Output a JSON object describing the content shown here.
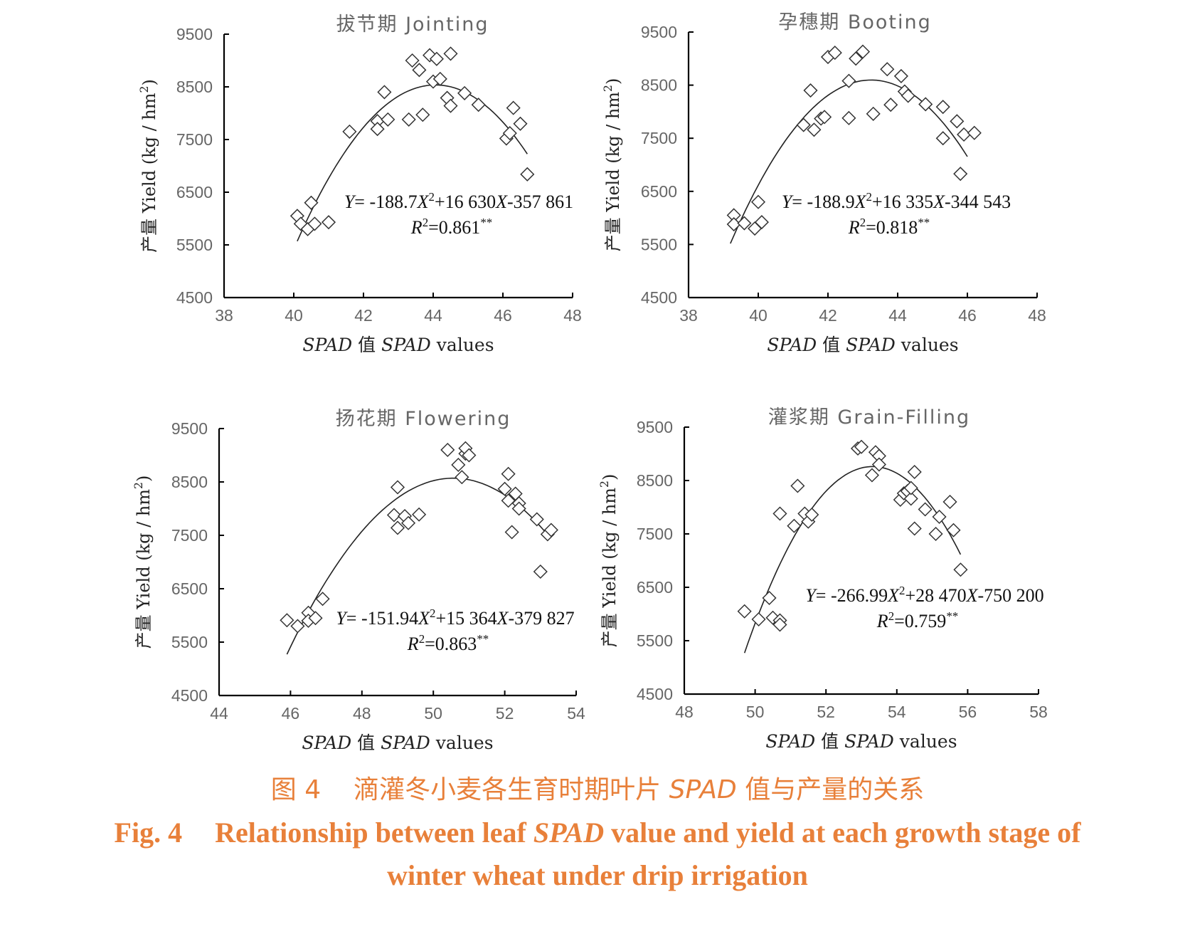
{
  "chart_data": [
    {
      "type": "scatter",
      "title": "拔节期 Jointing",
      "xlabel": "SPAD 值 SPAD values",
      "ylabel": "产量 Yield (kg / hm²)",
      "xlim": [
        38,
        48
      ],
      "ylim": [
        4500,
        9500
      ],
      "xticks": [
        "38",
        "40",
        "42",
        "44",
        "46",
        "48"
      ],
      "yticks": [
        "4500",
        "5500",
        "6500",
        "7500",
        "8500",
        "9500"
      ],
      "equation": "Y= -188.7X²+16 630X-357 861",
      "r2": "R²=0.861**",
      "fit": {
        "a": -188.7,
        "b": 16630,
        "c": -357861,
        "xrange": [
          40.1,
          46.7
        ]
      },
      "points": [
        [
          40.1,
          6050
        ],
        [
          40.2,
          5900
        ],
        [
          40.4,
          5800
        ],
        [
          40.5,
          6300
        ],
        [
          40.6,
          5900
        ],
        [
          41.0,
          5930
        ],
        [
          41.6,
          7650
        ],
        [
          42.4,
          7850
        ],
        [
          42.4,
          7700
        ],
        [
          42.6,
          8400
        ],
        [
          42.7,
          7880
        ],
        [
          43.3,
          7880
        ],
        [
          43.4,
          9000
        ],
        [
          43.6,
          8820
        ],
        [
          43.7,
          7970
        ],
        [
          43.9,
          9100
        ],
        [
          44.0,
          8600
        ],
        [
          44.1,
          9030
        ],
        [
          44.2,
          8650
        ],
        [
          44.4,
          8290
        ],
        [
          44.5,
          9130
        ],
        [
          44.5,
          8140
        ],
        [
          44.9,
          8380
        ],
        [
          45.3,
          8160
        ],
        [
          46.1,
          7520
        ],
        [
          46.2,
          7620
        ],
        [
          46.3,
          8100
        ],
        [
          46.5,
          7800
        ],
        [
          46.7,
          6840
        ]
      ]
    },
    {
      "type": "scatter",
      "title": "孕穗期 Booting",
      "xlabel": "SPAD 值 SPAD values",
      "ylabel": "产量 Yield (kg / hm²)",
      "xlim": [
        38,
        48
      ],
      "ylim": [
        4500,
        9500
      ],
      "xticks": [
        "38",
        "40",
        "42",
        "44",
        "46",
        "48"
      ],
      "yticks": [
        "4500",
        "5500",
        "6500",
        "7500",
        "8500",
        "9500"
      ],
      "equation": "Y= -188.9X²+16 335X-344 543",
      "r2": "R²=0.818**",
      "fit": {
        "a": -188.9,
        "b": 16335,
        "c": -344543,
        "xrange": [
          39.2,
          46.0
        ]
      },
      "points": [
        [
          39.3,
          6050
        ],
        [
          39.3,
          5880
        ],
        [
          39.6,
          5900
        ],
        [
          39.9,
          5800
        ],
        [
          40.0,
          6300
        ],
        [
          40.1,
          5920
        ],
        [
          41.3,
          7750
        ],
        [
          41.5,
          8400
        ],
        [
          41.6,
          7660
        ],
        [
          41.8,
          7870
        ],
        [
          41.9,
          7900
        ],
        [
          42.0,
          9030
        ],
        [
          42.2,
          9110
        ],
        [
          42.6,
          8580
        ],
        [
          42.6,
          7880
        ],
        [
          42.8,
          9000
        ],
        [
          43.0,
          9130
        ],
        [
          43.3,
          7960
        ],
        [
          43.7,
          8800
        ],
        [
          43.8,
          8130
        ],
        [
          44.1,
          8670
        ],
        [
          44.2,
          8380
        ],
        [
          44.3,
          8300
        ],
        [
          44.8,
          8140
        ],
        [
          45.3,
          8090
        ],
        [
          45.3,
          7500
        ],
        [
          45.7,
          7820
        ],
        [
          45.8,
          6830
        ],
        [
          45.9,
          7570
        ],
        [
          46.2,
          7600
        ]
      ]
    },
    {
      "type": "scatter",
      "title": "扬花期 Flowering",
      "xlabel": "SPAD 值 SPAD values",
      "ylabel": "产量 Yield (kg / hm²)",
      "xlim": [
        44,
        54
      ],
      "ylim": [
        4500,
        9500
      ],
      "xticks": [
        "44",
        "46",
        "48",
        "50",
        "52",
        "54"
      ],
      "yticks": [
        "4500",
        "5500",
        "6500",
        "7500",
        "8500",
        "9500"
      ],
      "equation": "Y= -151.94X²+15 364X-379 827",
      "r2": "R²=0.863**",
      "fit": {
        "a": -151.94,
        "b": 15364,
        "c": -379827,
        "xrange": [
          45.9,
          53.2
        ]
      },
      "points": [
        [
          45.9,
          5910
        ],
        [
          46.2,
          5800
        ],
        [
          46.5,
          6050
        ],
        [
          46.5,
          5900
        ],
        [
          46.7,
          5950
        ],
        [
          46.9,
          6310
        ],
        [
          48.9,
          7880
        ],
        [
          49.0,
          7640
        ],
        [
          49.0,
          8400
        ],
        [
          49.2,
          7860
        ],
        [
          49.3,
          7730
        ],
        [
          49.6,
          7890
        ],
        [
          50.4,
          9100
        ],
        [
          50.7,
          8820
        ],
        [
          50.8,
          8590
        ],
        [
          50.9,
          9030
        ],
        [
          50.9,
          9130
        ],
        [
          51.0,
          9000
        ],
        [
          52.0,
          8370
        ],
        [
          52.1,
          8150
        ],
        [
          52.1,
          8650
        ],
        [
          52.2,
          7560
        ],
        [
          52.3,
          8280
        ],
        [
          52.4,
          8100
        ],
        [
          52.4,
          8000
        ],
        [
          52.9,
          7800
        ],
        [
          53.0,
          6820
        ],
        [
          53.2,
          7520
        ],
        [
          53.3,
          7600
        ]
      ]
    },
    {
      "type": "scatter",
      "title": "灌浆期 Grain-Filling",
      "xlabel": "SPAD 值 SPAD values",
      "ylabel": "产量 Yield (kg / hm²)",
      "xlim": [
        48,
        58
      ],
      "ylim": [
        4500,
        9500
      ],
      "xticks": [
        "48",
        "50",
        "52",
        "54",
        "56",
        "58"
      ],
      "yticks": [
        "4500",
        "5500",
        "6500",
        "7500",
        "8500",
        "9500"
      ],
      "equation": "Y= -266.99X²+28 470X-750 200",
      "r2": "R²=0.759**",
      "fit": {
        "a": -266.99,
        "b": 28470,
        "c": -750200,
        "xrange": [
          49.7,
          55.8
        ]
      },
      "points": [
        [
          49.7,
          6050
        ],
        [
          50.1,
          5900
        ],
        [
          50.4,
          6300
        ],
        [
          50.5,
          5930
        ],
        [
          50.7,
          5880
        ],
        [
          50.7,
          5800
        ],
        [
          50.7,
          7880
        ],
        [
          51.1,
          7650
        ],
        [
          51.2,
          8400
        ],
        [
          51.4,
          7880
        ],
        [
          51.5,
          7730
        ],
        [
          51.6,
          7860
        ],
        [
          52.9,
          9100
        ],
        [
          53.0,
          9130
        ],
        [
          53.3,
          8600
        ],
        [
          53.4,
          9030
        ],
        [
          53.5,
          8960
        ],
        [
          53.5,
          8800
        ],
        [
          54.1,
          8140
        ],
        [
          54.2,
          8260
        ],
        [
          54.3,
          8300
        ],
        [
          54.4,
          8160
        ],
        [
          54.4,
          8360
        ],
        [
          54.5,
          7600
        ],
        [
          54.5,
          8660
        ],
        [
          54.8,
          7960
        ],
        [
          55.1,
          7500
        ],
        [
          55.2,
          7820
        ],
        [
          55.5,
          8100
        ],
        [
          55.6,
          7570
        ],
        [
          55.8,
          6830
        ]
      ]
    }
  ],
  "caption": {
    "cn_label": "图 4",
    "cn_pre": "滴灌冬小麦各生育时期叶片",
    "cn_em": "SPAD",
    "cn_post": "值与产量的关系",
    "en_label": "Fig. 4",
    "en_pre": "Relationship between leaf",
    "en_em": "SPAD",
    "en_post": "value and yield at each growth stage of",
    "en_line2": "winter wheat under drip irrigation"
  },
  "colors": {
    "caption": "#e8803a",
    "axis": "#000000",
    "tick": "#666666",
    "marker": "#333333"
  }
}
